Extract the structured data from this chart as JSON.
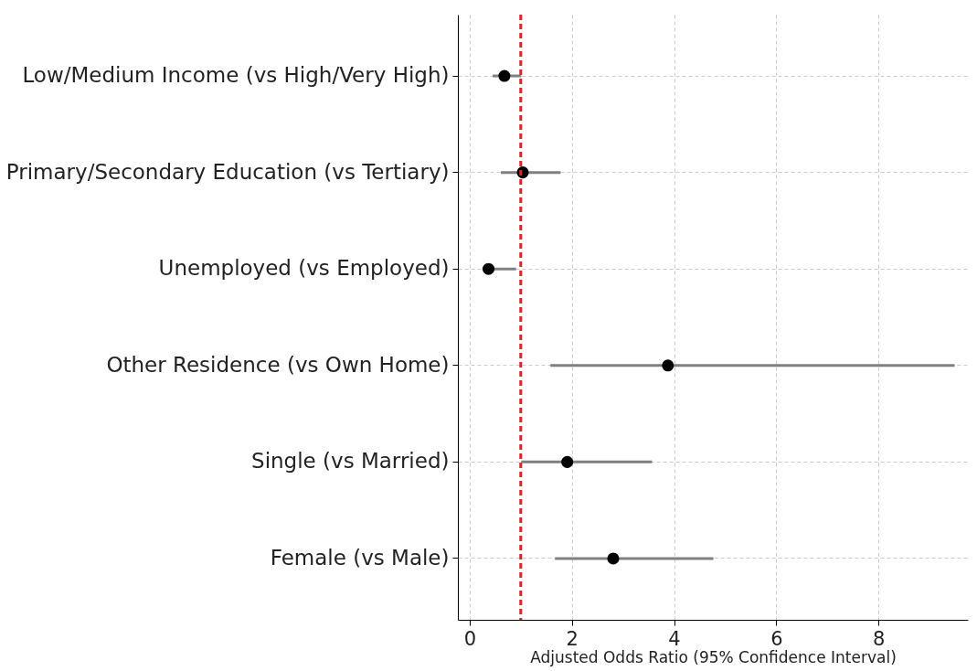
{
  "chart_data": {
    "type": "scatter",
    "orientation": "horizontal",
    "xlabel": "Adjusted Odds Ratio (95% Confidence Interval)",
    "categories": [
      "Low/Medium Income (vs High/Very High)",
      "Primary/Secondary Education (vs Tertiary)",
      "Unemployed (vs Employed)",
      "Other Residence (vs Own Home)",
      "Single (vs Married)",
      "Female (vs Male)"
    ],
    "color": "#000000",
    "values": [
      0.68,
      1.04,
      0.37,
      3.88,
      1.91,
      2.81
    ],
    "errors": [
      [
        0.45,
        1.01
      ],
      [
        0.61,
        1.78
      ],
      [
        0.25,
        0.91
      ],
      [
        1.58,
        9.49
      ],
      [
        1.01,
        3.57
      ],
      [
        1.67,
        4.77
      ]
    ],
    "xlim": [
      -0.23,
      9.75
    ],
    "xticks": [
      0,
      2,
      4,
      6,
      8
    ],
    "ref_lines": [
      {
        "axis": "x",
        "value": 1,
        "color": "#d62728",
        "line_style": "dashed"
      }
    ],
    "grid": true,
    "marker": "circle"
  }
}
